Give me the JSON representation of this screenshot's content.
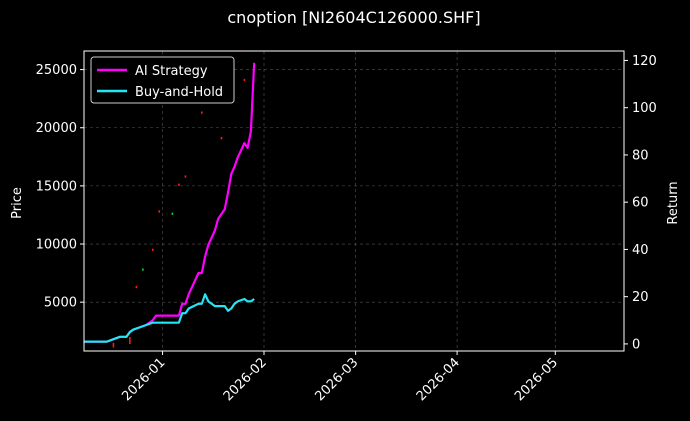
{
  "chart_data": {
    "type": "line",
    "title": "cnoption [NI2604C126000.SHF]",
    "ylabel": "Price",
    "y2label": "Return",
    "x_ticks": [
      "2026-01",
      "2026-02",
      "2026-03",
      "2026-04",
      "2026-05"
    ],
    "x_range": [
      "2025-12-08",
      "2026-05-22"
    ],
    "ylim": [
      800,
      26600
    ],
    "y_ticks": [
      5000,
      10000,
      15000,
      20000,
      25000
    ],
    "y2lim": [
      -3,
      124
    ],
    "y2_ticks": [
      0,
      20,
      40,
      60,
      80,
      100,
      120
    ],
    "grid": true,
    "legend_position": "top-left",
    "colors": {
      "strategy": "#ff00ff",
      "benchmark": "#22e5f5",
      "background": "#000000",
      "grid": "#555555",
      "up": "#00cc44",
      "down": "#ff1a1a"
    },
    "series": [
      {
        "name": "AI Strategy",
        "axis": "return",
        "dates": [
          "2025-12-08",
          "2025-12-12",
          "2025-12-15",
          "2025-12-17",
          "2025-12-19",
          "2025-12-21",
          "2025-12-22",
          "2025-12-23",
          "2025-12-25",
          "2025-12-27",
          "2025-12-29",
          "2025-12-30",
          "2025-12-31",
          "2026-01-04",
          "2026-01-06",
          "2026-01-07",
          "2026-01-08",
          "2026-01-09",
          "2026-01-12",
          "2026-01-13",
          "2026-01-14",
          "2026-01-15",
          "2026-01-17",
          "2026-01-18",
          "2026-01-20",
          "2026-01-21",
          "2026-01-22",
          "2026-01-23",
          "2026-01-24",
          "2026-01-26",
          "2026-01-27",
          "2026-01-28",
          "2026-01-29"
        ],
        "values": [
          1,
          1,
          1,
          2,
          3,
          3,
          5,
          6,
          7,
          8,
          10,
          12,
          12,
          12,
          12,
          17,
          17,
          21,
          30,
          30,
          37,
          42,
          48,
          53,
          57,
          64,
          72,
          75,
          79,
          85,
          83,
          90,
          119
        ]
      },
      {
        "name": "Buy-and-Hold",
        "axis": "return",
        "dates": [
          "2025-12-08",
          "2025-12-12",
          "2025-12-15",
          "2025-12-17",
          "2025-12-19",
          "2025-12-21",
          "2025-12-22",
          "2025-12-23",
          "2025-12-25",
          "2025-12-27",
          "2025-12-29",
          "2025-12-30",
          "2025-12-31",
          "2026-01-04",
          "2026-01-06",
          "2026-01-07",
          "2026-01-08",
          "2026-01-09",
          "2026-01-12",
          "2026-01-13",
          "2026-01-14",
          "2026-01-15",
          "2026-01-17",
          "2026-01-18",
          "2026-01-20",
          "2026-01-21",
          "2026-01-22",
          "2026-01-23",
          "2026-01-24",
          "2026-01-26",
          "2026-01-27",
          "2026-01-28",
          "2026-01-29"
        ],
        "values": [
          1,
          1,
          1,
          2,
          3,
          3,
          5,
          6,
          7,
          8,
          9,
          9,
          9,
          9,
          9,
          13,
          13,
          15,
          17,
          17,
          21,
          18,
          16,
          16,
          16,
          14,
          15,
          17,
          18,
          19,
          18,
          18,
          19
        ]
      }
    ],
    "price_marks": [
      {
        "date": "2025-12-17",
        "low": 1100,
        "high": 1500,
        "direction": "down"
      },
      {
        "date": "2025-12-22",
        "low": 1400,
        "high": 2000,
        "direction": "down"
      },
      {
        "date": "2025-12-24",
        "low": 6200,
        "high": 6400,
        "direction": "down"
      },
      {
        "date": "2025-12-26",
        "low": 7700,
        "high": 7900,
        "direction": "up"
      },
      {
        "date": "2025-12-29",
        "low": 9400,
        "high": 9600,
        "direction": "down"
      },
      {
        "date": "2025-12-31",
        "low": 12700,
        "high": 12900,
        "direction": "down"
      },
      {
        "date": "2026-01-04",
        "low": 12500,
        "high": 12700,
        "direction": "up"
      },
      {
        "date": "2026-01-06",
        "low": 15000,
        "high": 15200,
        "direction": "down"
      },
      {
        "date": "2026-01-08",
        "low": 15700,
        "high": 15900,
        "direction": "down"
      },
      {
        "date": "2026-01-13",
        "low": 21200,
        "high": 21400,
        "direction": "down"
      },
      {
        "date": "2026-01-19",
        "low": 19000,
        "high": 19200,
        "direction": "down"
      },
      {
        "date": "2026-01-26",
        "low": 24000,
        "high": 24200,
        "direction": "down"
      }
    ]
  }
}
